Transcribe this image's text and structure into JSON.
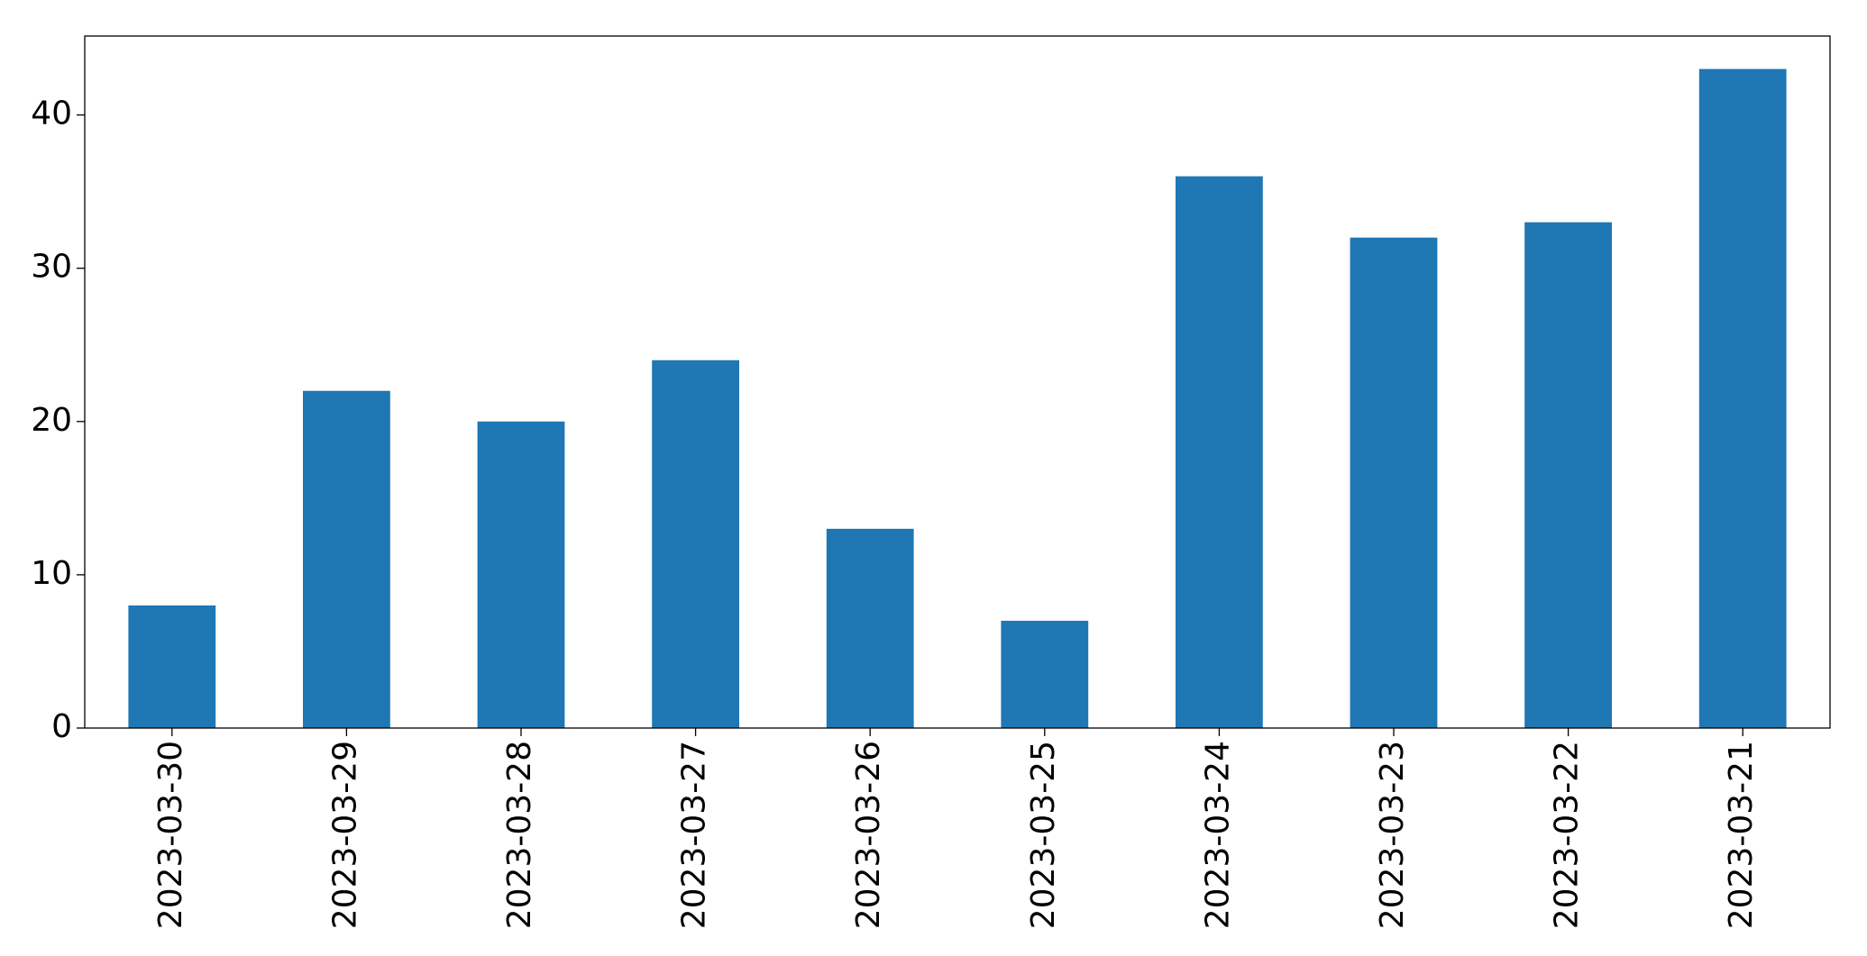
{
  "chart_data": {
    "type": "bar",
    "categories": [
      "2023-03-30",
      "2023-03-29",
      "2023-03-28",
      "2023-03-27",
      "2023-03-26",
      "2023-03-25",
      "2023-03-24",
      "2023-03-23",
      "2023-03-22",
      "2023-03-21"
    ],
    "values": [
      8,
      22,
      20,
      24,
      13,
      7,
      36,
      32,
      33,
      43
    ],
    "color": "#1f77b4",
    "ylim": [
      0,
      45.15
    ],
    "yticks": [
      0,
      10,
      20,
      30,
      40
    ],
    "grid": false
  }
}
